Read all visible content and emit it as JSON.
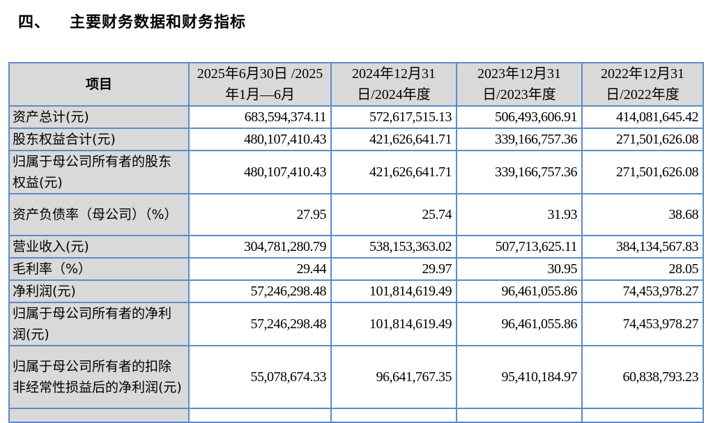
{
  "section": {
    "number": "四、",
    "title": "主要财务数据和财务指标"
  },
  "table": {
    "headers": [
      "项目",
      "2025年6月30日 /2025年1月—6月",
      "2024年12月31 日/2024年度",
      "2023年12月31 日/2023年度",
      "2022年12月31 日/2022年度"
    ],
    "rows": [
      {
        "label": "资产总计(元)",
        "values": [
          "683,594,374.11",
          "572,617,515.13",
          "506,493,606.91",
          "414,081,645.42"
        ]
      },
      {
        "label": "股东权益合计(元)",
        "values": [
          "480,107,410.43",
          "421,626,641.71",
          "339,166,757.36",
          "271,501,626.08"
        ]
      },
      {
        "label": "归属于母公司所有者的股东权益(元)",
        "values": [
          "480,107,410.43",
          "421,626,641.71",
          "339,166,757.36",
          "271,501,626.08"
        ]
      },
      {
        "label": "资产负债率（母公司）（%）",
        "values": [
          "27.95",
          "25.74",
          "31.93",
          "38.68"
        ]
      },
      {
        "label": "营业收入(元)",
        "values": [
          "304,781,280.79",
          "538,153,363.02",
          "507,713,625.11",
          "384,134,567.83"
        ]
      },
      {
        "label": "毛利率（%）",
        "values": [
          "29.44",
          "29.97",
          "30.95",
          "28.05"
        ]
      },
      {
        "label": "净利润(元)",
        "values": [
          "57,246,298.48",
          "101,814,619.49",
          "96,461,055.86",
          "74,453,978.27"
        ]
      },
      {
        "label": "归属于母公司所有者的净利润(元)",
        "values": [
          "57,246,298.48",
          "101,814,619.49",
          "96,461,055.86",
          "74,453,978.27"
        ]
      },
      {
        "label": "归属于母公司所有者的扣除非经常性损益后的净利润(元)",
        "values": [
          "55,078,674.33",
          "96,641,767.35",
          "95,410,184.97",
          "60,838,793.23"
        ]
      }
    ]
  }
}
